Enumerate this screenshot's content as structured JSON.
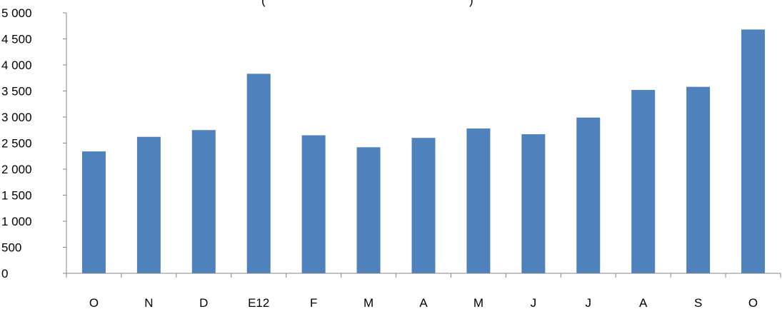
{
  "chart_data": {
    "type": "bar",
    "title_fragments": [
      "(",
      ")"
    ],
    "categories": [
      "O",
      "N",
      "D",
      "E12",
      "F",
      "M",
      "A",
      "M",
      "J",
      "J",
      "A",
      "S",
      "O"
    ],
    "values": [
      2340,
      2620,
      2750,
      3830,
      2650,
      2420,
      2600,
      2780,
      2670,
      2990,
      3520,
      3580,
      4680
    ],
    "ylim": [
      0,
      5000
    ],
    "ytick_values": [
      0,
      500,
      1000,
      1500,
      2000,
      2500,
      3000,
      3500,
      4000,
      4500,
      5000
    ],
    "ytick_labels": [
      "0",
      "500",
      "1 000",
      "1 500",
      "2 000",
      "2 500",
      "3 000",
      "3 500",
      "4 000",
      "4 500",
      "5 000"
    ],
    "xlabel": "",
    "ylabel": "",
    "grid": false,
    "legend": "none",
    "bar_color": "#4f81bd",
    "axis_color": "#868686"
  }
}
